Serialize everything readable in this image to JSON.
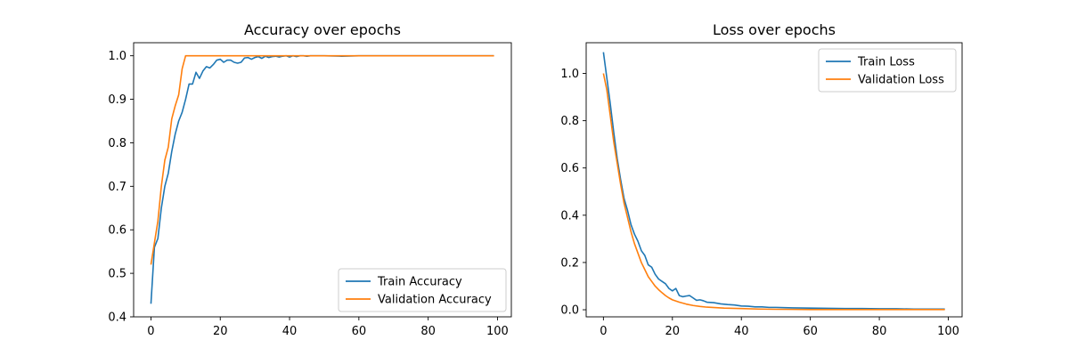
{
  "colors": {
    "train": "#1f77b4",
    "validation": "#ff7f0e",
    "axis": "#000000",
    "legend_border": "#cccccc"
  },
  "chart_data": [
    {
      "type": "line",
      "title": "Accuracy over epochs",
      "xlabel": "",
      "ylabel": "",
      "xlim": [
        -5,
        104
      ],
      "ylim": [
        0.4,
        1.03
      ],
      "xticks": [
        0,
        20,
        40,
        60,
        80,
        100
      ],
      "yticks": [
        0.4,
        0.5,
        0.6,
        0.7,
        0.8,
        0.9,
        1.0
      ],
      "ytick_labels": [
        "0.4",
        "0.5",
        "0.6",
        "0.7",
        "0.8",
        "0.9",
        "1.0"
      ],
      "grid": false,
      "legend_loc": "lower-right",
      "series": [
        {
          "name": "Train Accuracy",
          "color": "#1f77b4",
          "x": [
            0,
            1,
            2,
            3,
            4,
            5,
            6,
            7,
            8,
            9,
            10,
            11,
            12,
            13,
            14,
            15,
            16,
            17,
            18,
            19,
            20,
            21,
            22,
            23,
            24,
            25,
            26,
            27,
            28,
            29,
            30,
            31,
            32,
            33,
            34,
            35,
            36,
            37,
            38,
            39,
            40,
            41,
            42,
            43,
            44,
            45,
            46,
            47,
            48,
            49,
            50,
            55,
            60,
            65,
            70,
            75,
            80,
            85,
            90,
            95,
            99
          ],
          "y": [
            0.43,
            0.56,
            0.58,
            0.65,
            0.7,
            0.73,
            0.78,
            0.82,
            0.85,
            0.87,
            0.9,
            0.935,
            0.935,
            0.962,
            0.948,
            0.965,
            0.975,
            0.972,
            0.98,
            0.99,
            0.992,
            0.985,
            0.99,
            0.99,
            0.985,
            0.983,
            0.985,
            0.995,
            0.996,
            0.992,
            0.996,
            0.998,
            0.994,
            0.999,
            0.996,
            0.998,
            0.999,
            0.997,
            0.999,
            1.0,
            0.997,
            1.0,
            0.998,
            1.0,
            1.0,
            0.999,
            1.0,
            1.0,
            1.0,
            1.0,
            1.0,
            0.999,
            1.0,
            1.0,
            1.0,
            1.0,
            1.0,
            1.0,
            1.0,
            1.0,
            1.0
          ]
        },
        {
          "name": "Validation Accuracy",
          "color": "#ff7f0e",
          "x": [
            0,
            1,
            2,
            3,
            4,
            5,
            6,
            7,
            8,
            9,
            10,
            11,
            20,
            40,
            60,
            80,
            99
          ],
          "y": [
            0.52,
            0.57,
            0.62,
            0.7,
            0.76,
            0.79,
            0.855,
            0.885,
            0.91,
            0.97,
            1.0,
            1.0,
            1.0,
            1.0,
            1.0,
            1.0,
            1.0
          ]
        }
      ]
    },
    {
      "type": "line",
      "title": "Loss over epochs",
      "xlabel": "",
      "ylabel": "",
      "xlim": [
        -5,
        104
      ],
      "ylim": [
        -0.03,
        1.13
      ],
      "xticks": [
        0,
        20,
        40,
        60,
        80,
        100
      ],
      "yticks": [
        0.0,
        0.2,
        0.4,
        0.6,
        0.8,
        1.0
      ],
      "ytick_labels": [
        "0.0",
        "0.2",
        "0.4",
        "0.6",
        "0.8",
        "1.0"
      ],
      "grid": false,
      "legend_loc": "top-right",
      "series": [
        {
          "name": "Train Loss",
          "color": "#1f77b4",
          "x": [
            0,
            1,
            2,
            3,
            4,
            5,
            6,
            7,
            8,
            9,
            10,
            11,
            12,
            13,
            14,
            15,
            16,
            17,
            18,
            19,
            20,
            21,
            22,
            23,
            24,
            25,
            26,
            27,
            28,
            29,
            30,
            32,
            34,
            36,
            38,
            40,
            42,
            44,
            46,
            48,
            50,
            55,
            60,
            65,
            70,
            75,
            80,
            85,
            90,
            95,
            99
          ],
          "y": [
            1.09,
            0.98,
            0.87,
            0.75,
            0.64,
            0.55,
            0.47,
            0.42,
            0.36,
            0.32,
            0.29,
            0.25,
            0.23,
            0.19,
            0.18,
            0.15,
            0.13,
            0.12,
            0.11,
            0.09,
            0.08,
            0.09,
            0.06,
            0.055,
            0.058,
            0.06,
            0.05,
            0.04,
            0.042,
            0.038,
            0.032,
            0.03,
            0.025,
            0.022,
            0.02,
            0.016,
            0.015,
            0.012,
            0.012,
            0.01,
            0.01,
            0.008,
            0.007,
            0.006,
            0.005,
            0.005,
            0.004,
            0.004,
            0.003,
            0.003,
            0.003
          ]
        },
        {
          "name": "Validation Loss",
          "color": "#ff7f0e",
          "x": [
            0,
            1,
            2,
            3,
            4,
            5,
            6,
            7,
            8,
            9,
            10,
            11,
            12,
            13,
            14,
            15,
            16,
            17,
            18,
            19,
            20,
            22,
            24,
            26,
            28,
            30,
            35,
            40,
            45,
            50,
            60,
            70,
            80,
            90,
            99
          ],
          "y": [
            1.0,
            0.93,
            0.82,
            0.71,
            0.62,
            0.53,
            0.45,
            0.39,
            0.33,
            0.28,
            0.24,
            0.2,
            0.17,
            0.14,
            0.12,
            0.1,
            0.085,
            0.072,
            0.06,
            0.05,
            0.042,
            0.032,
            0.024,
            0.018,
            0.014,
            0.011,
            0.007,
            0.005,
            0.003,
            0.002,
            0.001,
            0.001,
            0.001,
            0.001,
            0.001
          ]
        }
      ]
    }
  ]
}
